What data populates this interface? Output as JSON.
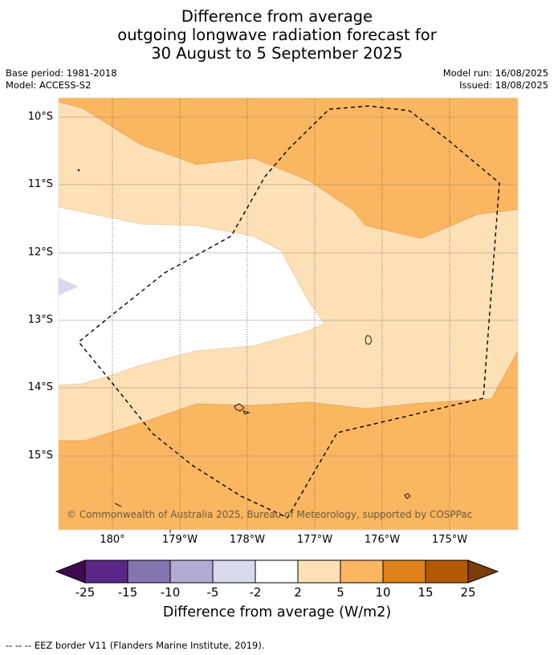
{
  "title": {
    "line1": "Difference from average",
    "line2": "outgoing longwave radiation forecast for",
    "line3": "30 August to 5 September 2025"
  },
  "meta": {
    "base_period": "Base period: 1981-2018",
    "model": "Model: ACCESS-S2",
    "model_run": "Model run: 16/08/2025",
    "issued": "Issued: 18/08/2025"
  },
  "map": {
    "copyright": "© Commonwealth of Australia 2025, Bureau of Meteorology, supported by COSPPac",
    "lat_labels": [
      "10°S",
      "11°S",
      "12°S",
      "13°S",
      "14°S",
      "15°S"
    ],
    "lon_labels": [
      "180°",
      "179°W",
      "178°W",
      "177°W",
      "176°W",
      "175°W"
    ],
    "fill_colors": {
      "pos_2_5": "#fde0b6",
      "pos_5_10": "#fbb661",
      "neg_5_2": "#d8d9ec",
      "neutral": "#ffffff"
    },
    "eez_border_style": "dashed"
  },
  "colorbar": {
    "ticks": [
      "-25",
      "-15",
      "-10",
      "-5",
      "-2",
      "2",
      "5",
      "10",
      "15",
      "25"
    ],
    "colors": [
      "#3f0a4f",
      "#5a2788",
      "#8474af",
      "#b3aad4",
      "#d8d9ec",
      "#ffffff",
      "#fde0b6",
      "#fbb661",
      "#e0821a",
      "#b25806",
      "#7d3c08"
    ],
    "label": "Difference from average (W/m2)"
  },
  "footer": "--  --  -- EEZ border V11 (Flanders Marine Institute, 2019)."
}
